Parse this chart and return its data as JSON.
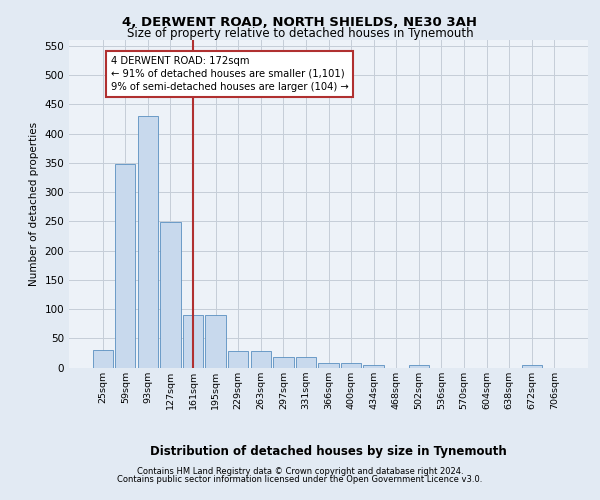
{
  "title1": "4, DERWENT ROAD, NORTH SHIELDS, NE30 3AH",
  "title2": "Size of property relative to detached houses in Tynemouth",
  "xlabel": "Distribution of detached houses by size in Tynemouth",
  "ylabel": "Number of detached properties",
  "footer1": "Contains HM Land Registry data © Crown copyright and database right 2024.",
  "footer2": "Contains public sector information licensed under the Open Government Licence v3.0.",
  "bin_labels": [
    "25sqm",
    "59sqm",
    "93sqm",
    "127sqm",
    "161sqm",
    "195sqm",
    "229sqm",
    "263sqm",
    "297sqm",
    "331sqm",
    "366sqm",
    "400sqm",
    "434sqm",
    "468sqm",
    "502sqm",
    "536sqm",
    "570sqm",
    "604sqm",
    "638sqm",
    "672sqm",
    "706sqm"
  ],
  "bar_heights": [
    30,
    348,
    430,
    248,
    90,
    90,
    28,
    28,
    18,
    18,
    8,
    8,
    5,
    0,
    5,
    0,
    0,
    0,
    0,
    5,
    0
  ],
  "bar_color": "#c8d9ed",
  "bar_edge_color": "#5a8fc0",
  "property_line_xidx": 4,
  "property_line_color": "#b03030",
  "annotation_text": "4 DERWENT ROAD: 172sqm\n← 91% of detached houses are smaller (1,101)\n9% of semi-detached houses are larger (104) →",
  "annotation_box_edgecolor": "#b03030",
  "ylim": [
    0,
    560
  ],
  "yticks": [
    0,
    50,
    100,
    150,
    200,
    250,
    300,
    350,
    400,
    450,
    500,
    550
  ],
  "fig_bg_color": "#e2eaf3",
  "plot_bg_color": "#edf2f8",
  "grid_color": "#c5cdd8"
}
